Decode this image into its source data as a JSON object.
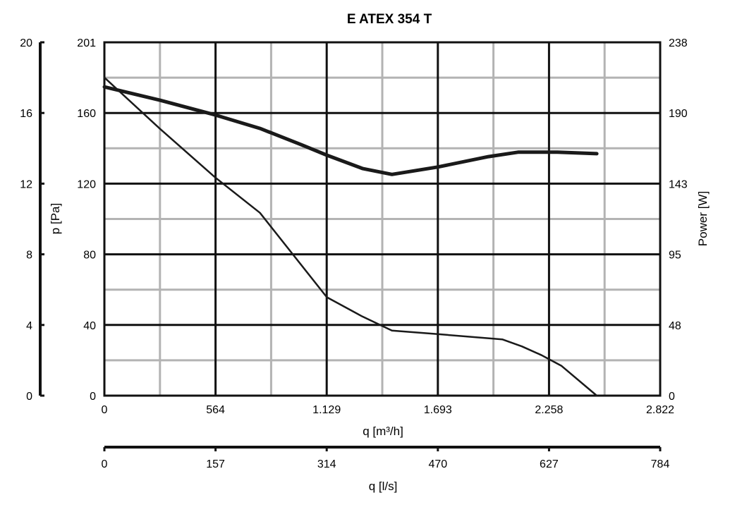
{
  "chart_data": {
    "type": "line",
    "title": "E ATEX 354 T",
    "x_axis_flow": {
      "label": "q [m³/h]",
      "ticks": [
        "0",
        "564",
        "1.129",
        "1.693",
        "2.258",
        "2.822"
      ],
      "range": [
        0,
        2822
      ]
    },
    "x_axis_lps": {
      "label": "q [l/s]",
      "ticks": [
        "0",
        "157",
        "314",
        "470",
        "627",
        "784"
      ],
      "range": [
        0,
        784
      ]
    },
    "y_axis_outer": {
      "ticks": [
        "0",
        "4",
        "8",
        "12",
        "16",
        "20"
      ],
      "range": [
        0,
        20
      ]
    },
    "y_axis_pressure": {
      "label": "p [Pa]",
      "ticks": [
        "0",
        "40",
        "80",
        "120",
        "160",
        "201"
      ],
      "range": [
        0,
        201
      ]
    },
    "y_axis_power": {
      "label": "Power [W]",
      "ticks": [
        "0",
        "48",
        "95",
        "143",
        "190",
        "238"
      ],
      "range": [
        0,
        238
      ]
    },
    "grid": true,
    "series": [
      {
        "axis": "pressure",
        "x": [
          0,
          280,
          564,
          790,
          1129,
          1310,
          1460,
          1693,
          2020,
          2120,
          2220,
          2320,
          2500
        ],
        "y": [
          181,
          152,
          124,
          104,
          56,
          45,
          37,
          35,
          32,
          28,
          23,
          17,
          0
        ]
      },
      {
        "axis": "power",
        "x": [
          0,
          282,
          564,
          790,
          1000,
          1129,
          1310,
          1460,
          1693,
          1950,
          2100,
          2300,
          2500
        ],
        "y": [
          208,
          199,
          189,
          180,
          169,
          162,
          153,
          149,
          154,
          161,
          164,
          164,
          163
        ]
      }
    ]
  }
}
